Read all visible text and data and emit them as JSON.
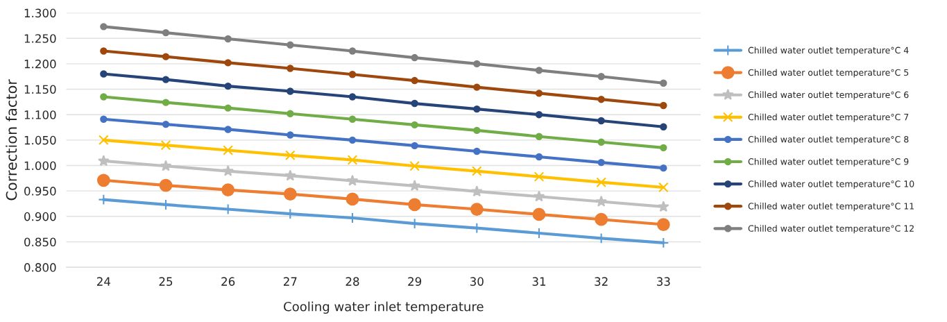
{
  "chart_data": {
    "type": "line",
    "xlabel": "Cooling water inlet temperature",
    "ylabel": "Correction factor",
    "categories": [
      "24",
      "25",
      "26",
      "27",
      "28",
      "29",
      "30",
      "31",
      "32",
      "33"
    ],
    "ylim": [
      0.8,
      1.3
    ],
    "yticks": [
      {
        "value": 0.8,
        "label": "0.800"
      },
      {
        "value": 0.85,
        "label": "0.850"
      },
      {
        "value": 0.9,
        "label": "0.900"
      },
      {
        "value": 0.95,
        "label": "0.950"
      },
      {
        "value": 1.0,
        "label": "1.000"
      },
      {
        "value": 1.05,
        "label": "1.050"
      },
      {
        "value": 1.1,
        "label": "1.100"
      },
      {
        "value": 1.15,
        "label": "1.150"
      },
      {
        "value": 1.2,
        "label": "1.200"
      },
      {
        "value": 1.25,
        "label": "1.250"
      },
      {
        "value": 1.3,
        "label": "1.300"
      }
    ],
    "grid": "y",
    "legend": "right",
    "series": [
      {
        "name": "Chilled water outlet temperature°C 4",
        "color": "#5b9bd5",
        "marker": "cross",
        "values": [
          0.933,
          0.923,
          0.914,
          0.905,
          0.897,
          0.886,
          0.877,
          0.867,
          0.857,
          0.848
        ]
      },
      {
        "name": "Chilled water outlet temperature°C 5",
        "color": "#ed7d31",
        "marker": "circle",
        "values": [
          0.971,
          0.961,
          0.952,
          0.944,
          0.934,
          0.923,
          0.914,
          0.904,
          0.894,
          0.884
        ]
      },
      {
        "name": "Chilled water outlet temperature°C 6",
        "color": "#bfbfbf",
        "marker": "star",
        "values": [
          1.009,
          0.999,
          0.989,
          0.98,
          0.97,
          0.96,
          0.949,
          0.939,
          0.929,
          0.919
        ]
      },
      {
        "name": "Chilled water outlet temperature°C 7",
        "color": "#ffc000",
        "marker": "x",
        "values": [
          1.05,
          1.04,
          1.03,
          1.02,
          1.011,
          0.999,
          0.989,
          0.978,
          0.967,
          0.957
        ]
      },
      {
        "name": "Chilled water outlet temperature°C 8",
        "color": "#4472c4",
        "marker": "circle",
        "values": [
          1.091,
          1.081,
          1.071,
          1.06,
          1.05,
          1.039,
          1.028,
          1.017,
          1.006,
          0.995
        ]
      },
      {
        "name": "Chilled water outlet temperature°C 9",
        "color": "#70ad47",
        "marker": "circle",
        "values": [
          1.135,
          1.124,
          1.113,
          1.102,
          1.091,
          1.08,
          1.069,
          1.057,
          1.046,
          1.035
        ]
      },
      {
        "name": "Chilled water outlet temperature°C 10",
        "color": "#264478",
        "marker": "circle",
        "values": [
          1.18,
          1.169,
          1.156,
          1.146,
          1.135,
          1.122,
          1.111,
          1.1,
          1.088,
          1.076
        ]
      },
      {
        "name": "Chilled water outlet temperature°C 11",
        "color": "#9e480e",
        "marker": "circle",
        "values": [
          1.225,
          1.214,
          1.202,
          1.191,
          1.179,
          1.167,
          1.154,
          1.142,
          1.13,
          1.118
        ]
      },
      {
        "name": "Chilled water outlet temperature°C 12",
        "color": "#7f7f7f",
        "marker": "circle",
        "values": [
          1.273,
          1.261,
          1.249,
          1.237,
          1.225,
          1.212,
          1.2,
          1.187,
          1.175,
          1.162
        ]
      }
    ]
  }
}
